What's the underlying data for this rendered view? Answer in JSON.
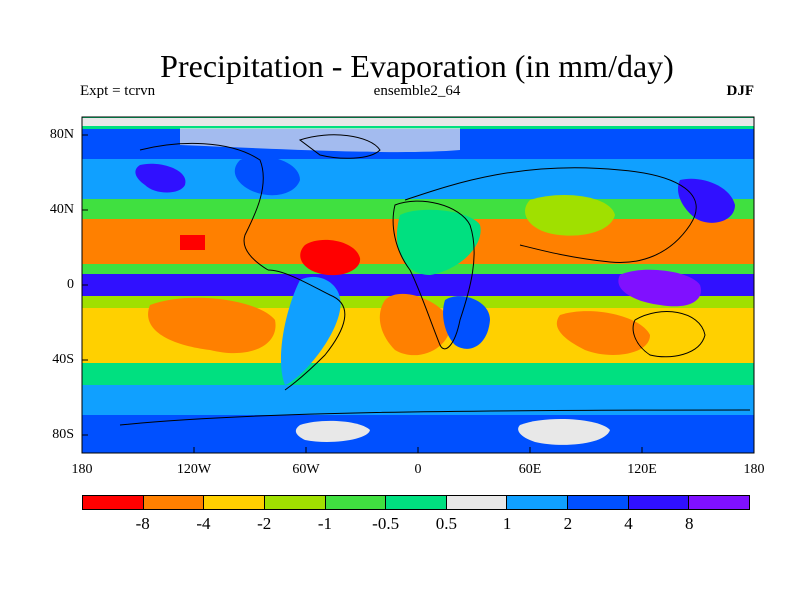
{
  "title": "Precipitation - Evaporation (in mm/day)",
  "left_label": "Expt = tcrvn",
  "center_label": "ensemble2_64",
  "right_label": "DJF",
  "y_ticks": [
    "80N",
    "40N",
    "0",
    "40S",
    "80S"
  ],
  "x_ticks": [
    "180",
    "120W",
    "60W",
    "0",
    "60E",
    "120E",
    "180"
  ],
  "colorbar": {
    "colors": [
      "#ff0000",
      "#ff8000",
      "#ffd000",
      "#a0e000",
      "#40e040",
      "#00e080",
      "#e8e8e8",
      "#10a0ff",
      "#0050ff",
      "#3010ff",
      "#8010ff"
    ],
    "labels": [
      "-8",
      "-4",
      "-2",
      "-1",
      "-0.5",
      "0.5",
      "1",
      "2",
      "4",
      "8"
    ]
  }
}
